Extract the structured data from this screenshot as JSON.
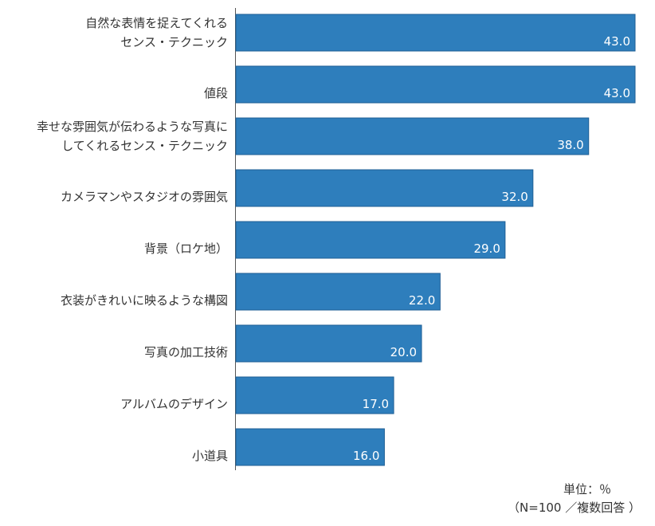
{
  "chart_data": {
    "type": "bar",
    "orientation": "horizontal",
    "categories": [
      [
        "自然な表情を捉えてくれる",
        "センス・テクニック"
      ],
      [
        "値段"
      ],
      [
        "幸せな雰囲気が伝わるような写真に",
        "してくれるセンス・テクニック"
      ],
      [
        "カメラマンやスタジオの雰囲気"
      ],
      [
        "背景（ロケ地）"
      ],
      [
        "衣装がきれいに映るような構図"
      ],
      [
        "写真の加工技術"
      ],
      [
        "アルバムのデザイン"
      ],
      [
        "小道具"
      ]
    ],
    "values": [
      43.0,
      43.0,
      38.0,
      32.0,
      29.0,
      22.0,
      20.0,
      17.0,
      16.0
    ],
    "value_labels": [
      "43.0",
      "43.0",
      "38.0",
      "32.0",
      "29.0",
      "22.0",
      "20.0",
      "17.0",
      "16.0"
    ],
    "xlim": [
      0,
      43
    ],
    "bar_color": "#2e7ebc",
    "bar_edge_color": "#1f5f95",
    "grid": false,
    "legend": "none"
  },
  "notes": {
    "unit": "単位：％",
    "sample": "（N=100 ／複数回答 ）"
  }
}
